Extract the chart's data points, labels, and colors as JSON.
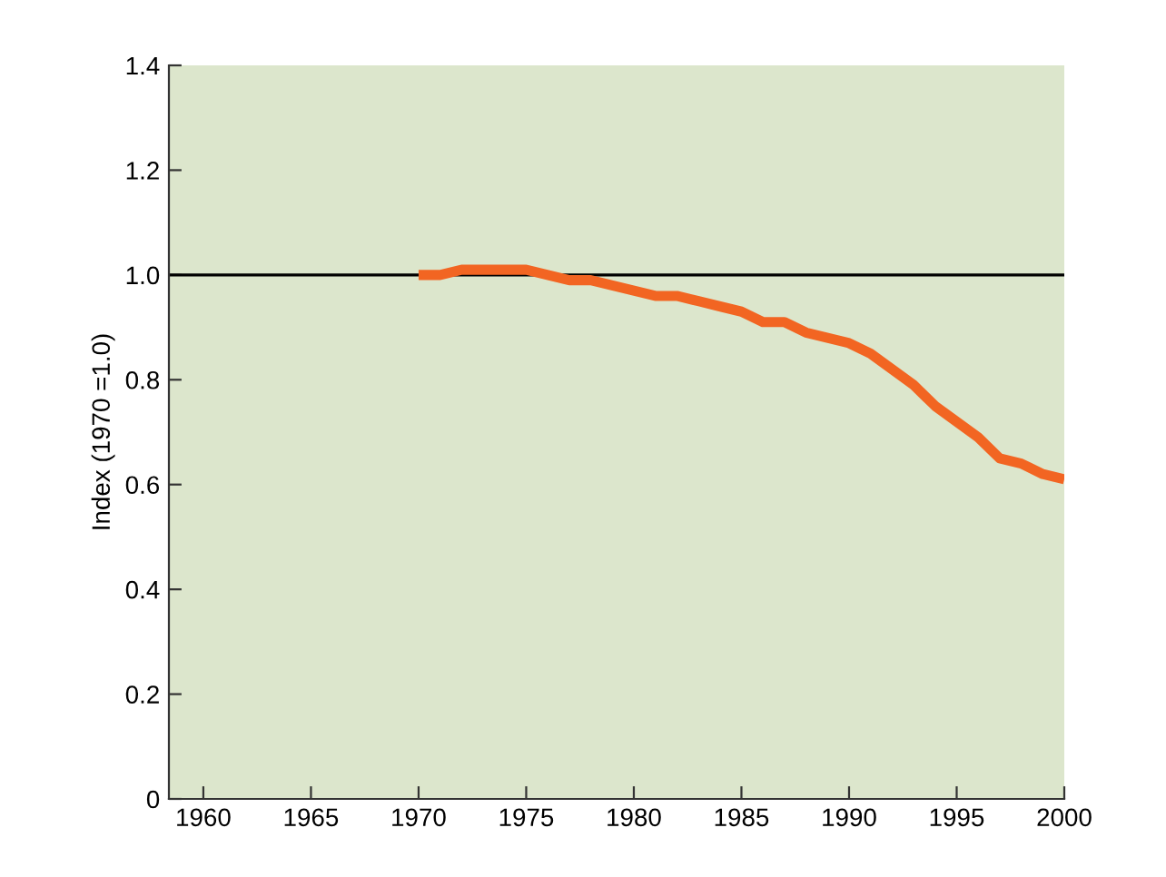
{
  "chart_data": {
    "type": "line",
    "ylabel": "Index (1970 =1.0)",
    "x": [
      1970,
      1971,
      1972,
      1973,
      1974,
      1975,
      1976,
      1977,
      1978,
      1979,
      1980,
      1981,
      1982,
      1983,
      1984,
      1985,
      1986,
      1987,
      1988,
      1989,
      1990,
      1991,
      1992,
      1993,
      1994,
      1995,
      1996,
      1997,
      1998,
      1999,
      2000
    ],
    "series": [
      {
        "color": "#f26522",
        "values": [
          1.0,
          1.0,
          1.01,
          1.01,
          1.01,
          1.01,
          1.0,
          0.99,
          0.99,
          0.98,
          0.97,
          0.96,
          0.96,
          0.95,
          0.94,
          0.93,
          0.91,
          0.91,
          0.89,
          0.88,
          0.87,
          0.85,
          0.82,
          0.79,
          0.75,
          0.72,
          0.69,
          0.65,
          0.64,
          0.62,
          0.61
        ]
      }
    ],
    "xlim": [
      1958.4,
      2000
    ],
    "ylim": [
      0,
      1.4
    ],
    "xticks": [
      1960,
      1965,
      1970,
      1975,
      1980,
      1985,
      1990,
      1995,
      2000
    ],
    "yticks": [
      0,
      0.2,
      0.4,
      0.6,
      0.8,
      {
        "value": 1,
        "label": "1.0"
      },
      1.2,
      1.4
    ],
    "ref_lines": [
      {
        "axis": "y",
        "value": 1.0,
        "color": "#000000"
      }
    ],
    "grid": false,
    "legend": false
  }
}
